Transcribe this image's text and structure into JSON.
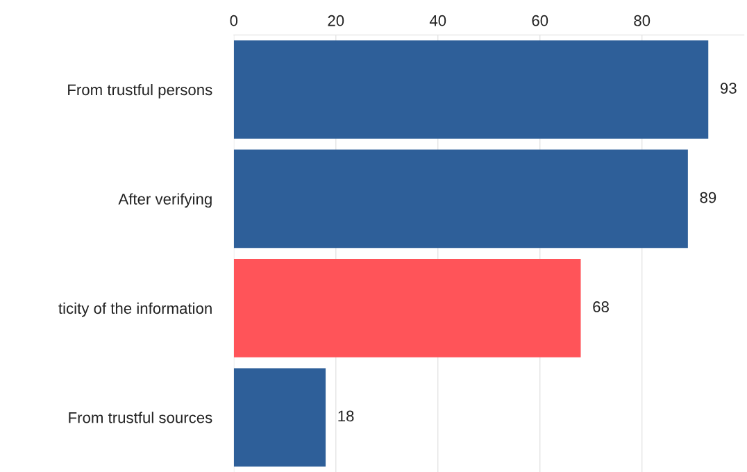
{
  "chart_data": {
    "type": "bar",
    "orientation": "horizontal",
    "categories": [
      "From trustful persons",
      "After verifying",
      "ticity of the information",
      "From trustful sources"
    ],
    "values": [
      93,
      89,
      68,
      18
    ],
    "colors": [
      "#2e5f99",
      "#2e5f99",
      "#ff5459",
      "#2e5f99"
    ],
    "xlim": [
      0,
      100
    ],
    "xticks": [
      0,
      20,
      40,
      60,
      80
    ],
    "grid": "x",
    "data_labels": true,
    "legend": false
  }
}
